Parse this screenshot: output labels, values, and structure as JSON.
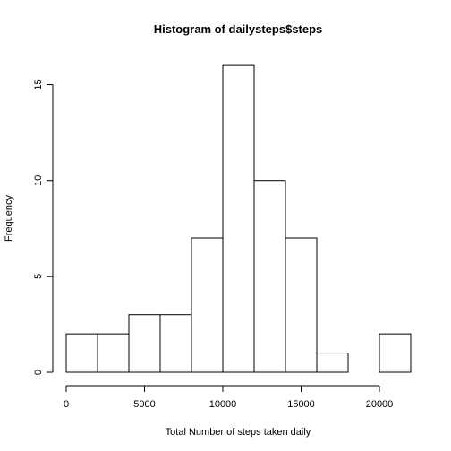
{
  "chart_data": {
    "type": "bar",
    "title": "Histogram of dailysteps$steps",
    "xlabel": "Total Number of steps taken daily",
    "ylabel": "Frequency",
    "bins": [
      {
        "from": 0,
        "to": 2000,
        "count": 2
      },
      {
        "from": 2000,
        "to": 4000,
        "count": 2
      },
      {
        "from": 4000,
        "to": 6000,
        "count": 3
      },
      {
        "from": 6000,
        "to": 8000,
        "count": 3
      },
      {
        "from": 8000,
        "to": 10000,
        "count": 7
      },
      {
        "from": 10000,
        "to": 12000,
        "count": 16
      },
      {
        "from": 12000,
        "to": 14000,
        "count": 10
      },
      {
        "from": 14000,
        "to": 16000,
        "count": 7
      },
      {
        "from": 16000,
        "to": 18000,
        "count": 1
      },
      {
        "from": 18000,
        "to": 20000,
        "count": 0
      },
      {
        "from": 20000,
        "to": 22000,
        "count": 2
      }
    ],
    "xlim": [
      0,
      22000
    ],
    "ylim": [
      0,
      16
    ],
    "x_ticks": [
      0,
      5000,
      10000,
      15000,
      20000
    ],
    "y_ticks": [
      0,
      5,
      10,
      15
    ],
    "grid": false,
    "legend": "none"
  }
}
